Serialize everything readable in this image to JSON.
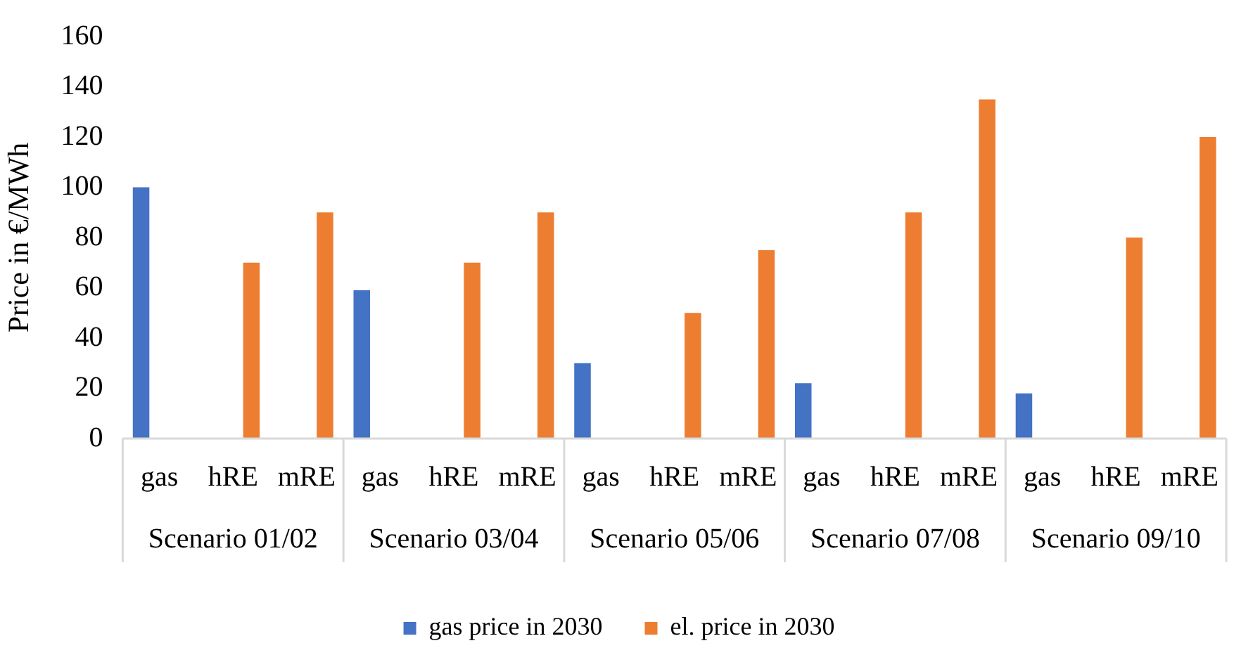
{
  "chart_data": {
    "type": "bar",
    "ylabel": "Price in €/MWh",
    "categories": [
      "gas",
      "hRE",
      "mRE",
      "gas",
      "hRE",
      "mRE",
      "gas",
      "hRE",
      "mRE",
      "gas",
      "hRE",
      "mRE",
      "gas",
      "hRE",
      "mRE"
    ],
    "annotations": [
      "Scenario 01/02",
      "Scenario 03/04",
      "Scenario 05/06",
      "Scenario 07/08",
      "Scenario 09/10"
    ],
    "series": [
      {
        "name": "gas price in 2030",
        "color": "#4472c4",
        "values": [
          100,
          null,
          null,
          59,
          null,
          null,
          30,
          null,
          null,
          22,
          null,
          null,
          18,
          null,
          null
        ]
      },
      {
        "name": "el. price in 2030",
        "color": "#ed7d31",
        "values": [
          null,
          70,
          90,
          null,
          70,
          90,
          null,
          50,
          75,
          null,
          90,
          135,
          null,
          80,
          120
        ]
      }
    ],
    "ylim": [
      0,
      160
    ],
    "yticks": [
      0,
      20,
      40,
      60,
      80,
      100,
      120,
      140,
      160
    ],
    "grid": false,
    "legend": "bottom"
  }
}
